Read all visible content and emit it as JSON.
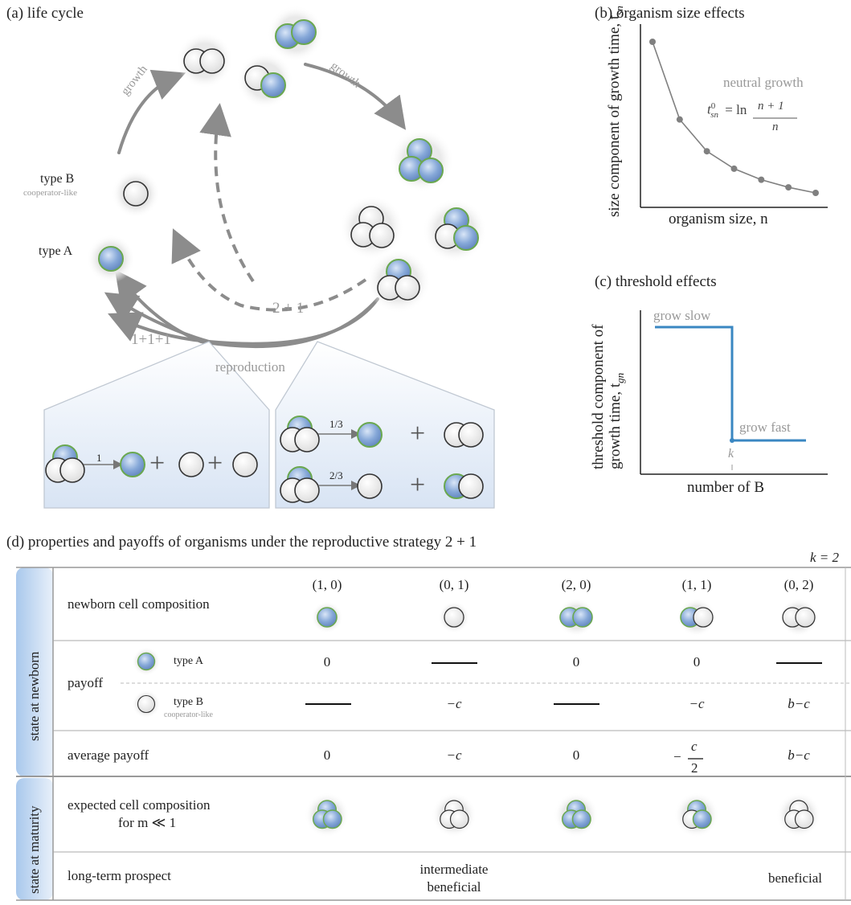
{
  "panel_a": {
    "title": "(a) life cycle",
    "growth_left": "growth",
    "growth_right": "growth",
    "typeB_label": "type B",
    "typeB_sub": "cooperator-like",
    "typeA_label": "type A",
    "strategy_2plus1": "2 + 1",
    "strategy_111": "1+1+1",
    "reproduction": "reproduction",
    "box1_prob": "1",
    "box2_prob_top": "1/3",
    "box2_prob_bottom": "2/3",
    "plus": "+"
  },
  "panel_b": {
    "title": "(b)  organism size effects",
    "ylabel": "size component of growth time, t",
    "ylabel_sub": "sn",
    "xlabel": "organism size, n",
    "annotation": "neutral growth",
    "formula_lhs": "t",
    "formula_sup": "0",
    "formula_sub": "sn",
    "formula_eq": "= ln",
    "formula_num": "n + 1",
    "formula_den": "n"
  },
  "panel_c": {
    "title": "(c) threshold effects",
    "ylabel": "threshold component of growth time, t",
    "ylabel_sub": "gn",
    "xlabel": "number of B",
    "slow": "grow slow",
    "fast": "grow fast",
    "k_label": "k"
  },
  "panel_d": {
    "title": "(d)  properties and payoffs of organisms under the reproductive strategy 2 + 1",
    "k_note": "k = 2",
    "group_newborn": "state at newborn",
    "group_maturity": "state at maturity",
    "row_composition": "newborn cell composition",
    "columns": [
      "(1, 0)",
      "(0, 1)",
      "(2, 0)",
      "(1, 1)",
      "(0, 2)"
    ],
    "row_payoff": "payoff",
    "typeA": "type A",
    "typeB": "type B",
    "typeB_sub": "cooperator-like",
    "payoff_A": [
      "0",
      "",
      "0",
      "0",
      ""
    ],
    "payoff_B": [
      "",
      "−c",
      "",
      "−c",
      "b−c"
    ],
    "row_avg": "average payoff",
    "avg": [
      "0",
      "−c",
      "0",
      "",
      "b−c"
    ],
    "avg_frac_sign": "−",
    "avg_frac_num": "c",
    "avg_frac_den": "2",
    "row_expected": "expected cell composition",
    "row_expected_2": "for m ≪ 1",
    "row_prospect": "long-term prospect",
    "prospect_mid_1": "intermediate",
    "prospect_mid_2": "beneficial",
    "prospect_right": "beneficial"
  },
  "colors": {
    "typeA_fill": "#7fa3d6",
    "typeA_rim": "#6aa84f",
    "typeB_fill": "#f2f2f2",
    "arrow": "#8c8c8c",
    "curve": "#3a87c2",
    "side_band": "#c7dcf2"
  }
}
